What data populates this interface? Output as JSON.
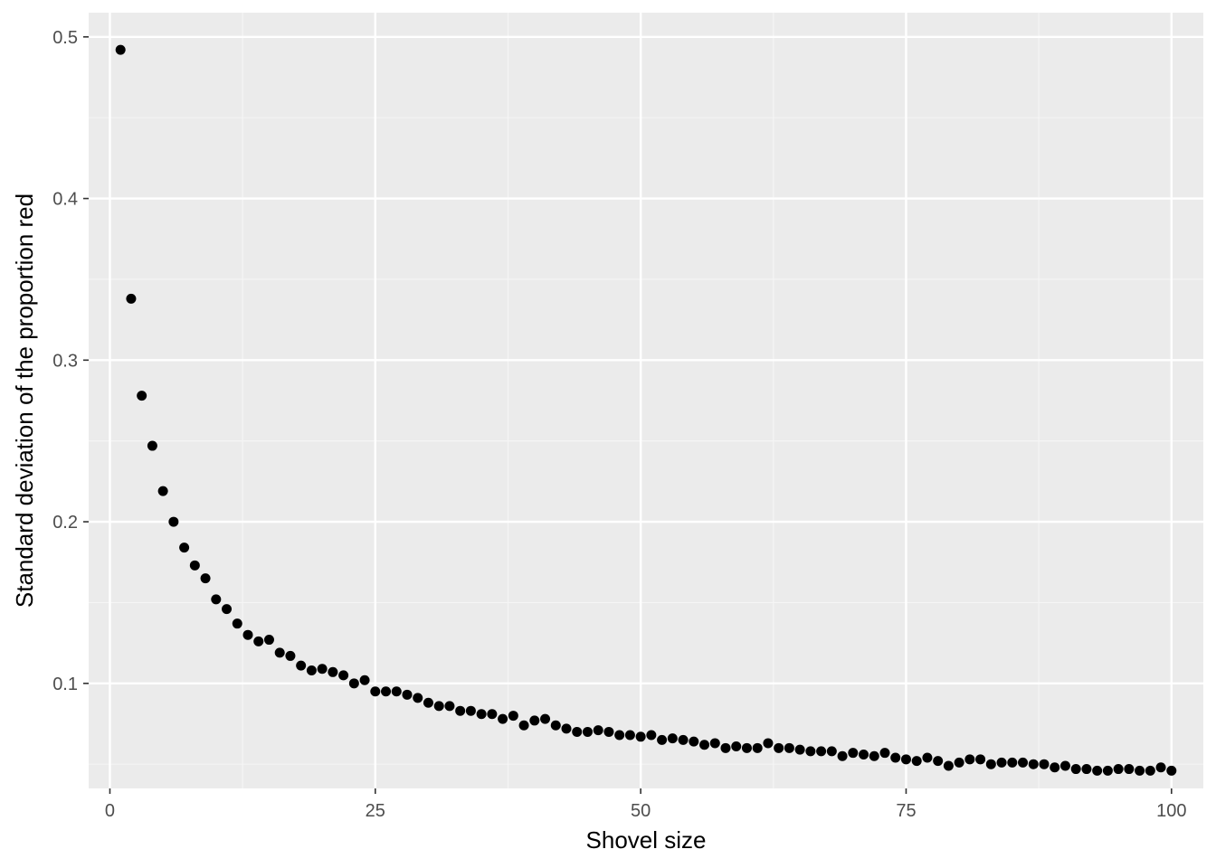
{
  "chart_data": {
    "type": "scatter",
    "title": "",
    "xlabel": "Shovel size",
    "ylabel": "Standard deviation of the proportion red",
    "xlim": [
      -2,
      103
    ],
    "ylim": [
      0.035,
      0.515
    ],
    "x_ticks": [
      0,
      25,
      50,
      75,
      100
    ],
    "x_tick_labels": [
      "0",
      "25",
      "50",
      "75",
      "100"
    ],
    "y_ticks": [
      0.1,
      0.2,
      0.3,
      0.4,
      0.5
    ],
    "y_tick_labels": [
      "0.1",
      "0.2",
      "0.3",
      "0.4",
      "0.5"
    ],
    "grid": true,
    "legend": "none",
    "colors": {
      "panel_background": "#ebebeb",
      "grid_major": "#ffffff",
      "grid_minor": "#f5f5f5",
      "point": "#000000"
    },
    "x": [
      1,
      2,
      3,
      4,
      5,
      6,
      7,
      8,
      9,
      10,
      11,
      12,
      13,
      14,
      15,
      16,
      17,
      18,
      19,
      20,
      21,
      22,
      23,
      24,
      25,
      26,
      27,
      28,
      29,
      30,
      31,
      32,
      33,
      34,
      35,
      36,
      37,
      38,
      39,
      40,
      41,
      42,
      43,
      44,
      45,
      46,
      47,
      48,
      49,
      50,
      51,
      52,
      53,
      54,
      55,
      56,
      57,
      58,
      59,
      60,
      61,
      62,
      63,
      64,
      65,
      66,
      67,
      68,
      69,
      70,
      71,
      72,
      73,
      74,
      75,
      76,
      77,
      78,
      79,
      80,
      81,
      82,
      83,
      84,
      85,
      86,
      87,
      88,
      89,
      90,
      91,
      92,
      93,
      94,
      95,
      96,
      97,
      98,
      99,
      100
    ],
    "y": [
      0.492,
      0.338,
      0.278,
      0.247,
      0.219,
      0.2,
      0.184,
      0.173,
      0.165,
      0.152,
      0.146,
      0.137,
      0.13,
      0.126,
      0.127,
      0.119,
      0.117,
      0.111,
      0.108,
      0.109,
      0.107,
      0.105,
      0.1,
      0.102,
      0.095,
      0.095,
      0.095,
      0.093,
      0.091,
      0.088,
      0.086,
      0.086,
      0.083,
      0.083,
      0.081,
      0.081,
      0.078,
      0.08,
      0.074,
      0.077,
      0.078,
      0.074,
      0.072,
      0.07,
      0.07,
      0.071,
      0.07,
      0.068,
      0.068,
      0.067,
      0.068,
      0.065,
      0.066,
      0.065,
      0.064,
      0.062,
      0.063,
      0.06,
      0.061,
      0.06,
      0.06,
      0.063,
      0.06,
      0.06,
      0.059,
      0.058,
      0.058,
      0.058,
      0.055,
      0.057,
      0.056,
      0.055,
      0.057,
      0.054,
      0.053,
      0.052,
      0.054,
      0.052,
      0.049,
      0.051,
      0.053,
      0.053,
      0.05,
      0.051,
      0.051,
      0.051,
      0.05,
      0.05,
      0.048,
      0.049,
      0.047,
      0.047,
      0.046,
      0.046,
      0.047,
      0.047,
      0.046,
      0.046,
      0.048,
      0.046
    ]
  }
}
